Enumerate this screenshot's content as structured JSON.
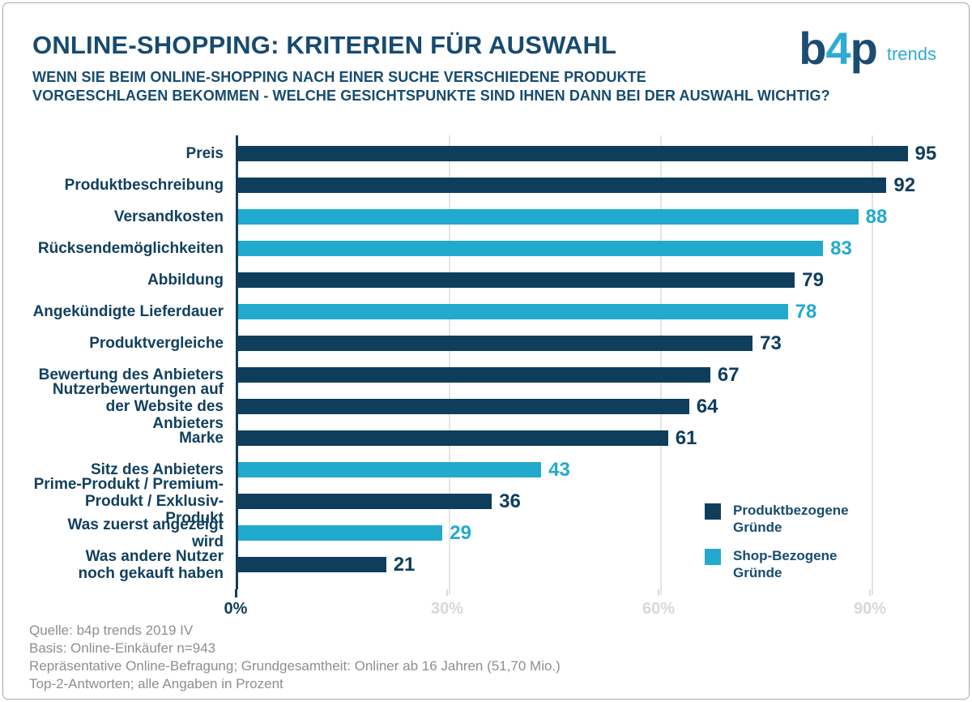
{
  "header": {
    "title": "ONLINE-SHOPPING: KRITERIEN FÜR AUSWAHL",
    "subtitle_line1": "WENN SIE BEIM ONLINE-SHOPPING NACH EINER SUCHE VERSCHIEDENE PRODUKTE",
    "subtitle_line2": "VORGESCHLAGEN BEKOMMEN - WELCHE GESICHTSPUNKTE SIND IHNEN DANN BEI DER AUSWAHL WICHTIG?"
  },
  "logo": {
    "part1": "b",
    "part2": "4",
    "part3": "p",
    "suffix": "trends"
  },
  "chart_data": {
    "type": "bar",
    "orientation": "horizontal",
    "title": "Online-Shopping: Kriterien für Auswahl",
    "unit": "percent",
    "xlim": [
      0,
      100
    ],
    "x_ticks": [
      "0%",
      "30%",
      "60%",
      "90%"
    ],
    "grid": "vertical-at-30-60-90",
    "legend_position": "bottom-right-inside",
    "colors": {
      "product": "#0e3e5c",
      "shop": "#21aacd"
    },
    "items": [
      {
        "label": "Preis",
        "value": 95,
        "group": "product"
      },
      {
        "label": "Produktbeschreibung",
        "value": 92,
        "group": "product"
      },
      {
        "label": "Versandkosten",
        "value": 88,
        "group": "shop"
      },
      {
        "label": "Rücksendemöglichkeiten",
        "value": 83,
        "group": "shop"
      },
      {
        "label": "Abbildung",
        "value": 79,
        "group": "product"
      },
      {
        "label": "Angekündigte Lieferdauer",
        "value": 78,
        "group": "shop"
      },
      {
        "label": "Produktvergleiche",
        "value": 73,
        "group": "product"
      },
      {
        "label": "Bewertung des Anbieters",
        "value": 67,
        "group": "product"
      },
      {
        "label": "Nutzerbewertungen auf\nder Website des Anbieters",
        "value": 64,
        "group": "product"
      },
      {
        "label": "Marke",
        "value": 61,
        "group": "product"
      },
      {
        "label": "Sitz des Anbieters",
        "value": 43,
        "group": "shop"
      },
      {
        "label": "Prime-Produkt / Premium-\nProdukt / Exklusiv-Produkt",
        "value": 36,
        "group": "product"
      },
      {
        "label": "Was zuerst angezeigt wird",
        "value": 29,
        "group": "shop"
      },
      {
        "label": "Was andere Nutzer\nnoch gekauft haben",
        "value": 21,
        "group": "product"
      }
    ],
    "ticks": [
      {
        "label": "0%",
        "pct": 0,
        "emph": true
      },
      {
        "label": "30%",
        "pct": 30,
        "emph": false
      },
      {
        "label": "60%",
        "pct": 60,
        "emph": false
      },
      {
        "label": "90%",
        "pct": 90,
        "emph": false
      }
    ],
    "legend": [
      {
        "label": "Produktbezogene\nGründe",
        "group": "product"
      },
      {
        "label": "Shop-Bezogene\nGründe",
        "group": "shop"
      }
    ]
  },
  "footer": {
    "lines": [
      "Quelle: b4p trends 2019 IV",
      "Basis: Online-Einkäufer n=943",
      "Repräsentative Online-Befragung; Grundgesamtheit: Onliner ab 16 Jahren (51,70 Mio.)",
      "Top-2-Antworten; alle Angaben in Prozent"
    ]
  }
}
